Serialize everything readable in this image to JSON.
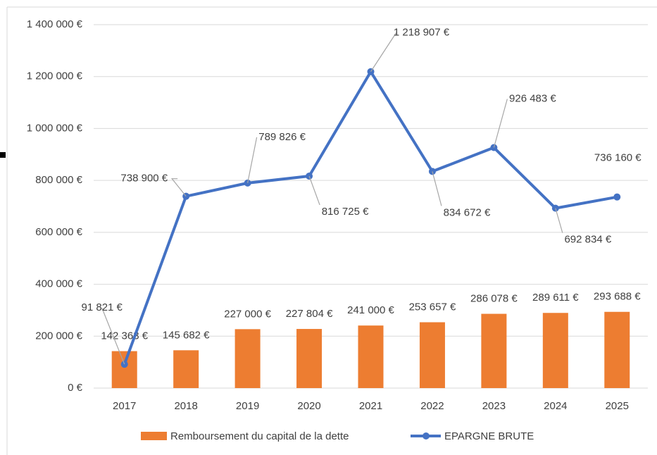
{
  "chart_data": {
    "type": "bar_line",
    "categories": [
      "2017",
      "2018",
      "2019",
      "2020",
      "2021",
      "2022",
      "2023",
      "2024",
      "2025"
    ],
    "series": [
      {
        "name": "Remboursement du capital de la dette",
        "type": "bar",
        "color": "#ed7d31",
        "values": [
          142363,
          145682,
          227000,
          227804,
          241000,
          253657,
          286078,
          289611,
          293688
        ],
        "value_labels": [
          "142 363 €",
          "145 682 €",
          "227 000 €",
          "227 804 €",
          "241 000 €",
          "253 657 €",
          "286 078 €",
          "289 611 €",
          "293 688 €"
        ]
      },
      {
        "name": "EPARGNE BRUTE",
        "type": "line",
        "color": "#4472c4",
        "values": [
          91821,
          738900,
          789826,
          816725,
          1218907,
          834672,
          926483,
          692834,
          736160
        ],
        "value_labels": [
          "91 821 €",
          "738 900 €",
          "789 826 €",
          "816 725 €",
          "1 218 907 €",
          "834 672 €",
          "926 483 €",
          "692 834 €",
          "736 160 €"
        ]
      }
    ],
    "ylim": [
      0,
      1400000
    ],
    "yticks": [
      {
        "value": 0,
        "label": "0 €"
      },
      {
        "value": 200000,
        "label": "200 000 €"
      },
      {
        "value": 400000,
        "label": "400 000 €"
      },
      {
        "value": 600000,
        "label": "600 000 €"
      },
      {
        "value": 800000,
        "label": "800 000 €"
      },
      {
        "value": 1000000,
        "label": "1 000 000 €"
      },
      {
        "value": 1200000,
        "label": "1 200 000 €"
      },
      {
        "value": 1400000,
        "label": "1 400 000 €"
      }
    ],
    "grid": true,
    "legend": "bottom"
  }
}
